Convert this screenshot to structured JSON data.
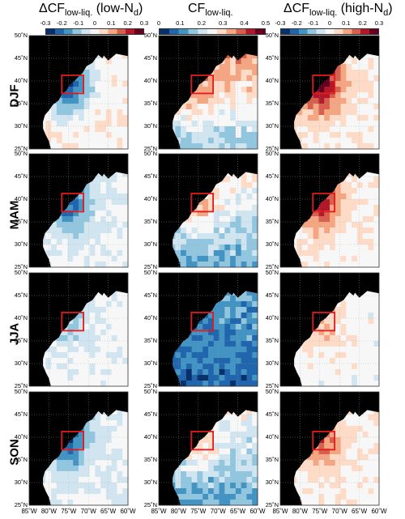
{
  "titles": {
    "left": {
      "main": "ΔCF",
      "sub": "low-liq.",
      "tail": " (low-N",
      "tailsub": "d",
      "end": ")"
    },
    "center": {
      "main": "CF",
      "sub": "low-liq.",
      "tail": "",
      "tailsub": "",
      "end": ""
    },
    "right": {
      "main": "ΔCF",
      "sub": "low-liq.",
      "tail": " (high-N",
      "tailsub": "d",
      "end": ")"
    }
  },
  "colorbars": {
    "diverging_ticks": [
      "-0.3",
      "-0.2",
      "-0.1",
      "0",
      "0.1",
      "0.2",
      "0.3"
    ],
    "sequential_ticks": [
      "0",
      "0.1",
      "0.2",
      "0.3",
      "0.4",
      "0.5"
    ],
    "diverging_colors": [
      "#08306b",
      "#2166ac",
      "#4393c3",
      "#92c5de",
      "#d1e5f0",
      "#f7f7f7",
      "#fddbc7",
      "#f4a582",
      "#d6604d",
      "#b2182b",
      "#67001f"
    ],
    "sequential_colors": [
      "#08306b",
      "#2166ac",
      "#4393c3",
      "#92c5de",
      "#d1e5f0",
      "#f7f7f7",
      "#fddbc7",
      "#f4a582",
      "#d6604d",
      "#b2182b",
      "#67001f"
    ]
  },
  "rows": [
    "DJF",
    "MAM",
    "JJA",
    "SON"
  ],
  "lat_ticks": [
    "50˚N",
    "45˚N",
    "40˚N",
    "35˚N",
    "30˚N",
    "25˚N"
  ],
  "lon_ticks": [
    "85˚W",
    "80˚W",
    "75˚W",
    "70˚W",
    "65˚W",
    "60˚W"
  ],
  "land_color": "#000000",
  "box_color": "#e31a1c",
  "chart_data": [
    {
      "type": "heatmap",
      "row": "DJF",
      "column": "ΔCF low-liq. (low-Nd)",
      "xlim": [
        -85,
        -60
      ],
      "ylim": [
        25,
        50
      ],
      "clim": [
        -0.3,
        0.3
      ],
      "box_center_anomaly": -0.25,
      "offshore_anomaly": 0.02
    },
    {
      "type": "heatmap",
      "row": "DJF",
      "column": "CF low-liq.",
      "xlim": [
        -85,
        -60
      ],
      "ylim": [
        25,
        50
      ],
      "clim": [
        0,
        0.5
      ],
      "box_center_value": 0.35,
      "offshore_value": 0.38
    },
    {
      "type": "heatmap",
      "row": "DJF",
      "column": "ΔCF low-liq. (high-Nd)",
      "xlim": [
        -85,
        -60
      ],
      "ylim": [
        25,
        50
      ],
      "clim": [
        -0.3,
        0.3
      ],
      "box_center_anomaly": 0.25,
      "offshore_anomaly": 0.02
    },
    {
      "type": "heatmap",
      "row": "MAM",
      "column": "ΔCF low-liq. (low-Nd)",
      "xlim": [
        -85,
        -60
      ],
      "ylim": [
        25,
        50
      ],
      "clim": [
        -0.3,
        0.3
      ],
      "box_center_anomaly": -0.18,
      "offshore_anomaly": -0.02
    },
    {
      "type": "heatmap",
      "row": "MAM",
      "column": "CF low-liq.",
      "xlim": [
        -85,
        -60
      ],
      "ylim": [
        25,
        50
      ],
      "clim": [
        0,
        0.5
      ],
      "box_center_value": 0.32,
      "offshore_value": 0.3
    },
    {
      "type": "heatmap",
      "row": "MAM",
      "column": "ΔCF low-liq. (high-Nd)",
      "xlim": [
        -85,
        -60
      ],
      "ylim": [
        25,
        50
      ],
      "clim": [
        -0.3,
        0.3
      ],
      "box_center_anomaly": 0.22,
      "offshore_anomaly": 0.01
    },
    {
      "type": "heatmap",
      "row": "JJA",
      "column": "ΔCF low-liq. (low-Nd)",
      "xlim": [
        -85,
        -60
      ],
      "ylim": [
        25,
        50
      ],
      "clim": [
        -0.3,
        0.3
      ],
      "box_center_anomaly": -0.08,
      "offshore_anomaly": -0.01
    },
    {
      "type": "heatmap",
      "row": "JJA",
      "column": "CF low-liq.",
      "xlim": [
        -85,
        -60
      ],
      "ylim": [
        25,
        50
      ],
      "clim": [
        0,
        0.5
      ],
      "box_center_value": 0.1,
      "offshore_value": 0.15
    },
    {
      "type": "heatmap",
      "row": "JJA",
      "column": "ΔCF low-liq. (high-Nd)",
      "xlim": [
        -85,
        -60
      ],
      "ylim": [
        25,
        50
      ],
      "clim": [
        -0.3,
        0.3
      ],
      "box_center_anomaly": 0.1,
      "offshore_anomaly": 0.0
    },
    {
      "type": "heatmap",
      "row": "SON",
      "column": "ΔCF low-liq. (low-Nd)",
      "xlim": [
        -85,
        -60
      ],
      "ylim": [
        25,
        50
      ],
      "clim": [
        -0.3,
        0.3
      ],
      "box_center_anomaly": -0.2,
      "offshore_anomaly": -0.02
    },
    {
      "type": "heatmap",
      "row": "SON",
      "column": "CF low-liq.",
      "xlim": [
        -85,
        -60
      ],
      "ylim": [
        25,
        50
      ],
      "clim": [
        0,
        0.5
      ],
      "box_center_value": 0.3,
      "offshore_value": 0.28
    },
    {
      "type": "heatmap",
      "row": "SON",
      "column": "ΔCF low-liq. (high-Nd)",
      "xlim": [
        -85,
        -60
      ],
      "ylim": [
        25,
        50
      ],
      "clim": [
        -0.3,
        0.3
      ],
      "box_center_anomaly": 0.16,
      "offshore_anomaly": 0.01
    }
  ],
  "highlight_box": {
    "lon": [
      -75,
      -70
    ],
    "lat": [
      37,
      42
    ]
  }
}
